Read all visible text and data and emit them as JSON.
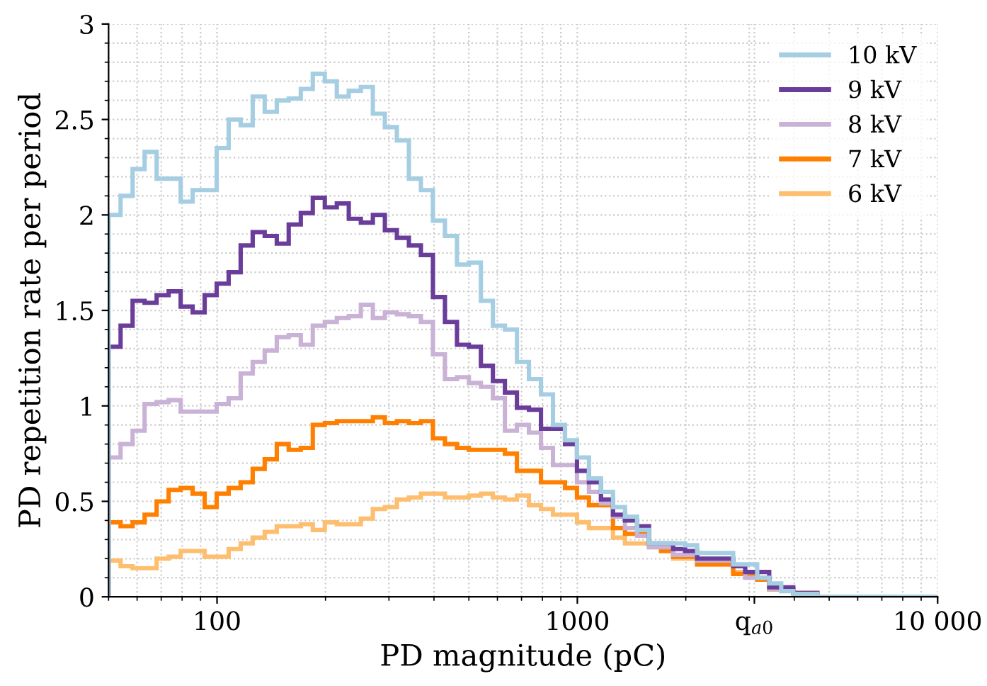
{
  "chart_data": {
    "type": "histogram",
    "xlabel": "PD magnitude (pC)",
    "ylabel": "PD repetition rate per period",
    "log": "x",
    "grid": true,
    "legend": "top right",
    "xlim": [
      50,
      10000
    ],
    "xticks": [
      100,
      1000,
      {
        "value": 3100,
        "label": "q$_{a0}$"
      },
      {
        "value": 10000,
        "label": "10 000"
      }
    ],
    "ylim": [
      0,
      3
    ],
    "yticks": [
      0,
      0.5,
      1,
      1.5,
      2,
      2.5,
      3
    ],
    "bins": [
      50.0,
      53.99,
      58.3,
      62.95,
      67.98,
      73.4,
      79.26,
      85.58,
      92.41,
      99.78,
      107.7,
      116.3,
      125.6,
      135.6,
      146.5,
      158.1,
      170.8,
      184.4,
      199.1,
      215.0,
      232.1,
      250.7,
      270.7,
      292.3,
      315.6,
      340.8,
      368.0,
      397.4,
      429.1,
      463.4,
      500.0,
      539.9,
      583.0,
      629.5,
      679.8,
      734.0,
      792.6,
      855.8,
      924.1,
      997.8,
      1077,
      1163,
      1256,
      1356,
      1465,
      1581,
      1708,
      1844,
      1991,
      2150,
      2321,
      2507,
      2707,
      2923,
      3156,
      3408,
      3680,
      3974,
      4291,
      4634,
      5000,
      5399,
      5830,
      6295,
      6798,
      7340,
      7926,
      8558,
      9241,
      9978
    ],
    "series": [
      {
        "name": "10 kV",
        "color": "#a6cee3",
        "values": [
          2.0,
          2.1,
          2.24,
          2.33,
          2.19,
          2.19,
          2.07,
          2.13,
          2.13,
          2.35,
          2.5,
          2.47,
          2.62,
          2.54,
          2.6,
          2.61,
          2.66,
          2.74,
          2.7,
          2.62,
          2.65,
          2.67,
          2.53,
          2.46,
          2.39,
          2.19,
          2.13,
          1.97,
          1.89,
          1.74,
          1.75,
          1.55,
          1.42,
          1.4,
          1.23,
          1.14,
          1.06,
          0.9,
          0.82,
          0.73,
          0.62,
          0.55,
          0.47,
          0.42,
          0.35,
          0.28,
          0.28,
          0.28,
          0.27,
          0.23,
          0.23,
          0.23,
          0.17,
          0.17,
          0.1,
          0.07,
          0.03,
          0.015,
          0.015,
          0,
          0,
          0,
          0,
          0,
          0,
          0,
          0,
          0,
          0
        ]
      },
      {
        "name": "9 kV",
        "color": "#6a3d9a",
        "values": [
          1.31,
          1.42,
          1.55,
          1.54,
          1.58,
          1.6,
          1.52,
          1.49,
          1.58,
          1.64,
          1.7,
          1.84,
          1.91,
          1.89,
          1.85,
          1.95,
          2.01,
          2.09,
          2.04,
          2.06,
          1.98,
          1.96,
          2.0,
          1.92,
          1.88,
          1.84,
          1.79,
          1.57,
          1.44,
          1.32,
          1.31,
          1.21,
          1.13,
          1.07,
          0.99,
          0.98,
          0.88,
          0.88,
          0.8,
          0.66,
          0.6,
          0.51,
          0.43,
          0.4,
          0.37,
          0.28,
          0.28,
          0.25,
          0.24,
          0.2,
          0.2,
          0.2,
          0.16,
          0.13,
          0.13,
          0.05,
          0.05,
          0.02,
          0.02,
          0,
          0,
          0,
          0,
          0,
          0,
          0,
          0,
          0,
          0
        ]
      },
      {
        "name": "8 kV",
        "color": "#cab2d6",
        "values": [
          0.73,
          0.8,
          0.87,
          1.01,
          1.02,
          1.03,
          0.97,
          0.97,
          0.97,
          1.01,
          1.04,
          1.17,
          1.23,
          1.29,
          1.36,
          1.37,
          1.32,
          1.42,
          1.44,
          1.46,
          1.47,
          1.53,
          1.46,
          1.49,
          1.48,
          1.47,
          1.44,
          1.27,
          1.14,
          1.15,
          1.12,
          1.1,
          1.04,
          0.87,
          0.9,
          0.86,
          0.78,
          0.69,
          0.69,
          0.6,
          0.55,
          0.49,
          0.42,
          0.36,
          0.32,
          0.26,
          0.26,
          0.22,
          0.22,
          0.19,
          0.19,
          0.19,
          0.16,
          0.1,
          0.1,
          0.04,
          0.04,
          0.02,
          0.02,
          0,
          0,
          0,
          0,
          0,
          0,
          0,
          0,
          0,
          0
        ]
      },
      {
        "name": "7 kV",
        "color": "#ff7f00",
        "values": [
          0.39,
          0.37,
          0.39,
          0.43,
          0.5,
          0.56,
          0.57,
          0.54,
          0.47,
          0.54,
          0.57,
          0.6,
          0.67,
          0.72,
          0.8,
          0.77,
          0.78,
          0.9,
          0.91,
          0.92,
          0.92,
          0.92,
          0.94,
          0.91,
          0.92,
          0.91,
          0.92,
          0.83,
          0.8,
          0.78,
          0.77,
          0.77,
          0.77,
          0.75,
          0.66,
          0.66,
          0.6,
          0.6,
          0.57,
          0.52,
          0.48,
          0.48,
          0.36,
          0.33,
          0.33,
          0.27,
          0.24,
          0.21,
          0.21,
          0.17,
          0.17,
          0.17,
          0.12,
          0.12,
          0.09,
          0.04,
          0.04,
          0.02,
          0.02,
          0,
          0,
          0,
          0,
          0,
          0,
          0,
          0,
          0,
          0
        ]
      },
      {
        "name": "6 kV",
        "color": "#fdbf6f",
        "values": [
          0.19,
          0.16,
          0.15,
          0.15,
          0.2,
          0.21,
          0.24,
          0.24,
          0.21,
          0.21,
          0.25,
          0.28,
          0.31,
          0.34,
          0.37,
          0.37,
          0.38,
          0.35,
          0.39,
          0.38,
          0.38,
          0.41,
          0.46,
          0.47,
          0.51,
          0.52,
          0.54,
          0.54,
          0.52,
          0.52,
          0.53,
          0.54,
          0.52,
          0.51,
          0.53,
          0.48,
          0.46,
          0.43,
          0.43,
          0.39,
          0.36,
          0.36,
          0.31,
          0.28,
          0.28,
          0.26,
          0.24,
          0.2,
          0.2,
          0.17,
          0.17,
          0.17,
          0.13,
          0.13,
          0.09,
          0.04,
          0.04,
          0.02,
          0.02,
          0,
          0,
          0,
          0,
          0,
          0,
          0,
          0,
          0,
          0
        ]
      }
    ]
  }
}
